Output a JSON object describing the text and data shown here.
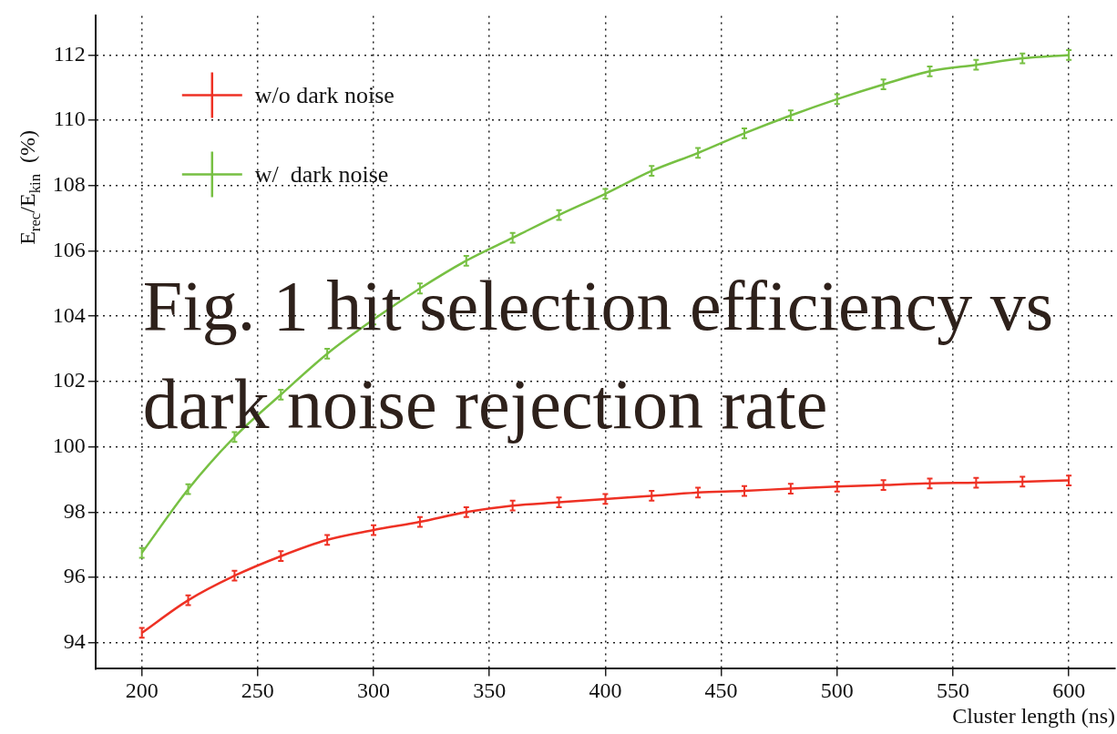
{
  "chart_data": {
    "type": "line",
    "xlabel": "Cluster length (ns)",
    "ylabel": "E$_{rec}$/E$_{kin}$  (%)",
    "x": [
      200,
      220,
      240,
      260,
      280,
      300,
      320,
      340,
      360,
      380,
      400,
      420,
      440,
      460,
      480,
      500,
      520,
      540,
      560,
      580,
      600
    ],
    "series": [
      {
        "name": "w/o dark noise",
        "color": "#ee3124",
        "values": [
          94.3,
          95.3,
          96.05,
          96.65,
          97.15,
          97.45,
          97.7,
          98.0,
          98.2,
          98.3,
          98.4,
          98.5,
          98.6,
          98.65,
          98.72,
          98.78,
          98.83,
          98.88,
          98.9,
          98.93,
          98.97
        ],
        "errors": [
          0.15,
          0.15,
          0.15,
          0.15,
          0.15,
          0.15,
          0.15,
          0.15,
          0.15,
          0.15,
          0.15,
          0.15,
          0.15,
          0.15,
          0.15,
          0.15,
          0.15,
          0.15,
          0.15,
          0.15,
          0.15
        ]
      },
      {
        "name": "w/  dark noise",
        "color": "#77c043",
        "values": [
          96.75,
          98.7,
          100.3,
          101.6,
          102.85,
          103.9,
          104.85,
          105.7,
          106.4,
          107.1,
          107.75,
          108.45,
          109.0,
          109.6,
          110.15,
          110.65,
          111.1,
          111.5,
          111.7,
          111.9,
          112.0
        ],
        "errors": [
          0.15,
          0.15,
          0.15,
          0.15,
          0.15,
          0.15,
          0.15,
          0.15,
          0.15,
          0.15,
          0.15,
          0.15,
          0.15,
          0.15,
          0.15,
          0.15,
          0.15,
          0.15,
          0.15,
          0.15,
          0.15
        ]
      }
    ],
    "xlim": [
      180,
      620
    ],
    "xticks": [
      200,
      250,
      300,
      350,
      400,
      450,
      500,
      550,
      600
    ],
    "ylim": [
      93.2,
      113.2
    ],
    "yticks": [
      94,
      96,
      98,
      100,
      102,
      104,
      106,
      108,
      110,
      112
    ],
    "grid": true,
    "legend": "top left",
    "marker": "none",
    "line_style": "solid",
    "annotations": [
      "Fig. 1 hit selection efficiency vs dark noise rejection rate"
    ]
  }
}
